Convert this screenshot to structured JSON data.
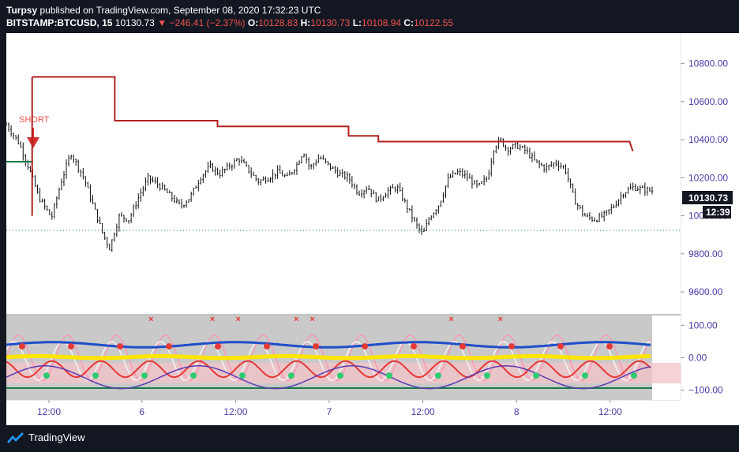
{
  "header": {
    "author": "Turpsy",
    "published_text": "published on TradingView.com, September 08, 2020 17:32:23 UTC",
    "symbol": "BITSTAMP:BTCUSD, 15",
    "last": "10130.73",
    "change": "−246.41 (−2.37%)",
    "open_label": "O:",
    "open": "10128.83",
    "high_label": "H:",
    "high": "10130.73",
    "low_label": "L:",
    "low": "10108.94",
    "close_label": "C:",
    "close": "10122.55"
  },
  "price_axis": {
    "ticks": [
      "10800.00",
      "10600.00",
      "10400.00",
      "10200.00",
      "10000.00",
      "9800.00",
      "9600.00"
    ],
    "last_price_label": "10130.73",
    "countdown_label": "12:39"
  },
  "oscillator_axis": {
    "ticks": [
      "100.00",
      "0.00",
      "−100.00"
    ]
  },
  "time_axis": {
    "ticks": [
      "12:00",
      "6",
      "12:00",
      "7",
      "12:00",
      "8",
      "12:00"
    ]
  },
  "annotations": {
    "short_label": "SHORT"
  },
  "footer": {
    "brand": "TradingView"
  },
  "colors": {
    "background": "#131722",
    "up_down": "#ef5350",
    "stop_line": "#b22222",
    "candles": "#000000",
    "axis_text": "#4a3aa8",
    "osc_blue": "#1e4ec8",
    "osc_yellow": "#ffe600",
    "osc_green_line": "#1b7a4a"
  },
  "chart_data": {
    "type": "line",
    "instrument": "BITSTAMP:BTCUSD",
    "interval": "15",
    "x_ticks": [
      "12:00",
      "6",
      "12:00",
      "7",
      "12:00",
      "8",
      "12:00"
    ],
    "y_ticks": [
      9600,
      9800,
      10000,
      10200,
      10400,
      10600,
      10800
    ],
    "ylim": [
      9480,
      10960
    ],
    "series": [
      {
        "approx_close_path": [
          [
            0,
            10480
          ],
          [
            0.02,
            10380
          ],
          [
            0.035,
            10250
          ],
          [
            0.05,
            10100
          ],
          [
            0.07,
            9990
          ],
          [
            0.085,
            10180
          ],
          [
            0.1,
            10330
          ],
          [
            0.12,
            10200
          ],
          [
            0.135,
            10050
          ],
          [
            0.15,
            9900
          ],
          [
            0.16,
            9830
          ],
          [
            0.175,
            10000
          ],
          [
            0.19,
            9980
          ],
          [
            0.205,
            10100
          ],
          [
            0.22,
            10200
          ],
          [
            0.24,
            10150
          ],
          [
            0.255,
            10100
          ],
          [
            0.27,
            10050
          ],
          [
            0.285,
            10100
          ],
          [
            0.3,
            10200
          ],
          [
            0.315,
            10260
          ],
          [
            0.33,
            10220
          ],
          [
            0.345,
            10260
          ],
          [
            0.36,
            10300
          ],
          [
            0.375,
            10240
          ],
          [
            0.39,
            10180
          ],
          [
            0.405,
            10200
          ],
          [
            0.42,
            10230
          ],
          [
            0.435,
            10200
          ],
          [
            0.45,
            10270
          ],
          [
            0.46,
            10340
          ],
          [
            0.47,
            10250
          ],
          [
            0.485,
            10310
          ],
          [
            0.5,
            10260
          ],
          [
            0.515,
            10220
          ],
          [
            0.53,
            10200
          ],
          [
            0.545,
            10120
          ],
          [
            0.56,
            10150
          ],
          [
            0.575,
            10080
          ],
          [
            0.59,
            10130
          ],
          [
            0.605,
            10150
          ],
          [
            0.62,
            10050
          ],
          [
            0.635,
            9950
          ],
          [
            0.645,
            9900
          ],
          [
            0.655,
            9990
          ],
          [
            0.67,
            10060
          ],
          [
            0.685,
            10200
          ],
          [
            0.7,
            10230
          ],
          [
            0.715,
            10200
          ],
          [
            0.73,
            10150
          ],
          [
            0.745,
            10200
          ],
          [
            0.755,
            10360
          ],
          [
            0.765,
            10400
          ],
          [
            0.775,
            10350
          ],
          [
            0.79,
            10370
          ],
          [
            0.805,
            10340
          ],
          [
            0.82,
            10280
          ],
          [
            0.835,
            10250
          ],
          [
            0.85,
            10280
          ],
          [
            0.865,
            10250
          ],
          [
            0.88,
            10080
          ],
          [
            0.895,
            10000
          ],
          [
            0.91,
            9980
          ],
          [
            0.925,
            10000
          ],
          [
            0.94,
            10050
          ],
          [
            0.955,
            10120
          ],
          [
            0.97,
            10150
          ],
          [
            0.985,
            10140
          ],
          [
            1.0,
            10130
          ]
        ]
      },
      {
        "name": "stop",
        "steps": [
          [
            0.0,
            10000
          ],
          [
            0.04,
            10000
          ],
          [
            0.04,
            10730
          ],
          [
            0.168,
            10730
          ],
          [
            0.168,
            10500
          ],
          [
            0.327,
            10500
          ],
          [
            0.327,
            10470
          ],
          [
            0.53,
            10470
          ],
          [
            0.53,
            10420
          ],
          [
            0.576,
            10420
          ],
          [
            0.576,
            10390
          ],
          [
            0.965,
            10390
          ],
          [
            0.97,
            10340
          ]
        ]
      }
    ],
    "oscillator": {
      "ylim": [
        -130,
        130
      ],
      "ticks": [
        100,
        0,
        -100
      ],
      "red_cross_positions": [
        0.225,
        0.32,
        0.36,
        0.45,
        0.475,
        0.69,
        0.766
      ]
    }
  }
}
